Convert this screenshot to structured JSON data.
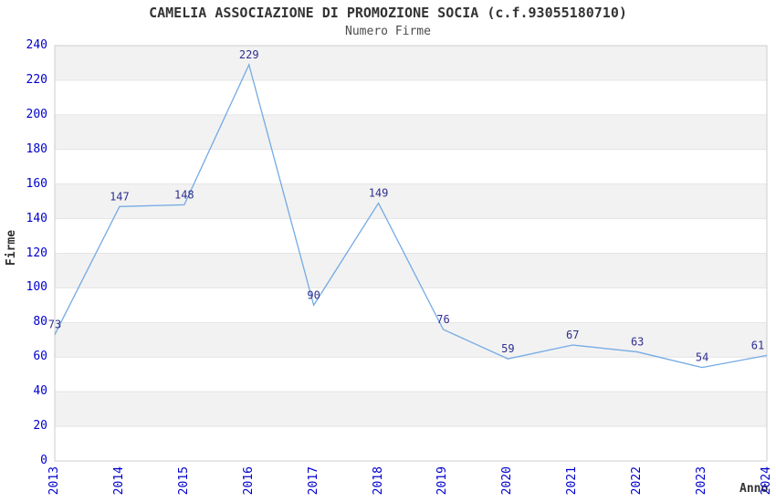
{
  "header": {
    "title": "CAMELIA ASSOCIAZIONE DI PROMOZIONE SOCIA (c.f.93055180710)",
    "subtitle": "Numero Firme"
  },
  "chart_data": {
    "type": "line",
    "title": "CAMELIA ASSOCIAZIONE DI PROMOZIONE SOCIA (c.f.93055180710)",
    "subtitle": "Numero Firme",
    "xlabel": "Anno",
    "ylabel": "Firme",
    "x": [
      "2013",
      "2014",
      "2015",
      "2016",
      "2017",
      "2018",
      "2019",
      "2020",
      "2021",
      "2022",
      "2023",
      "2024"
    ],
    "values": [
      73,
      147,
      148,
      229,
      90,
      149,
      76,
      59,
      67,
      63,
      54,
      61
    ],
    "ylim": [
      0,
      240
    ],
    "ytick_step": 20,
    "grid": true,
    "legend": "none",
    "banded_background": true,
    "colors": {
      "line": "#74aae4",
      "tick_label": "#0000cd",
      "data_label": "#2f2f8f",
      "band_gray": "#f2f2f2",
      "band_white": "#ffffff",
      "gridline": "#e4e4e4",
      "plot_border": "#cccccc",
      "title": "#333333",
      "subtitle": "#4d4d4d",
      "axis_title": "#333333"
    }
  }
}
